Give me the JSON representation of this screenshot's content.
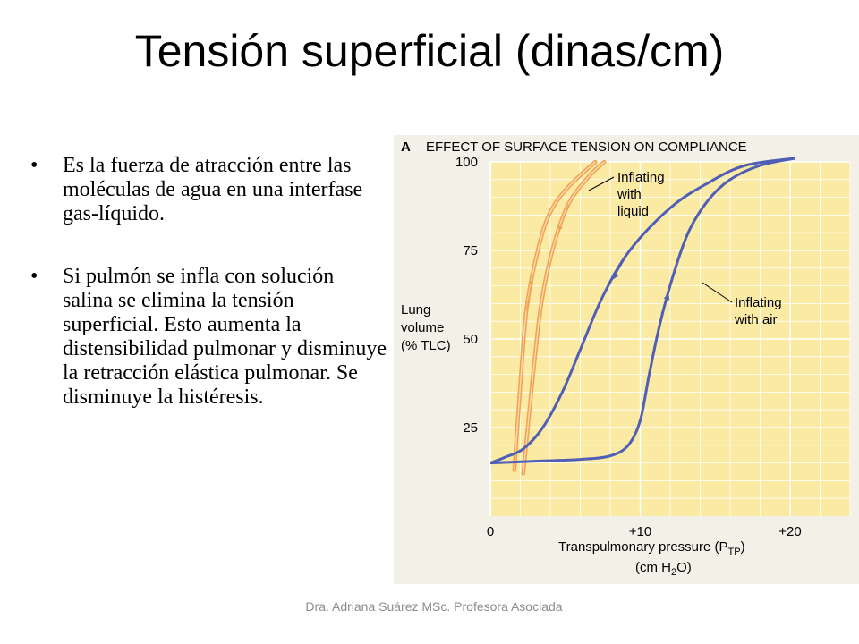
{
  "slide": {
    "title": "Tensión superficial (dinas/cm)",
    "bullets": [
      "Es la fuerza de atracción entre las moléculas de agua en una interfase gas-líquido.",
      "Si pulmón se infla con solución salina se elimina la tensión superficial.  Esto aumenta la distensibilidad pulmonar y disminuye la retracción elástica pulmonar. Se disminuye la histéresis."
    ],
    "footer": "Dra. Adriana Suárez MSc. Profesora Asociada"
  },
  "colors": {
    "plot_background": "#fbeaa3",
    "grid": "#ffffff",
    "page_background": "#f3f0e8",
    "air_curve": "#4f5fb6",
    "liquid_curve": "#f0a255",
    "liquid_curve_inner": "#fbd9a6",
    "text": "#000000"
  },
  "chart_data": {
    "type": "line",
    "panel_letter": "A",
    "title": "EFFECT OF SURFACE TENSION ON COMPLIANCE",
    "ylabel": [
      "Lung",
      "volume",
      "(% TLC)"
    ],
    "xlabel": "Transpulmonary pressure (P",
    "xlabel_subscript": "TP",
    "xlabel_units": [
      "(cm H",
      "2",
      "O)"
    ],
    "xlim": [
      0,
      24
    ],
    "ylim": [
      0,
      100
    ],
    "x_ticks": [
      {
        "value": 0,
        "label": "0"
      },
      {
        "value": 10,
        "label": "+10"
      },
      {
        "value": 20,
        "label": "+20"
      }
    ],
    "y_ticks": [
      {
        "value": 25,
        "label": "25"
      },
      {
        "value": 50,
        "label": "50"
      },
      {
        "value": 75,
        "label": "75"
      },
      {
        "value": 100,
        "label": "100"
      }
    ],
    "grid": true,
    "series": [
      {
        "name": "Inflating with liquid",
        "label_lines": [
          "Inflating",
          "with",
          "liquid"
        ],
        "color": "#f0a255",
        "inflation": [
          [
            1.6,
            13
          ],
          [
            2.0,
            37
          ],
          [
            2.4,
            58
          ],
          [
            3.0,
            72
          ],
          [
            3.8,
            84
          ],
          [
            5.0,
            92
          ],
          [
            7.0,
            100
          ]
        ],
        "deflation": [
          [
            2.2,
            12
          ],
          [
            2.8,
            38
          ],
          [
            3.4,
            60
          ],
          [
            4.2,
            76
          ],
          [
            5.2,
            88
          ],
          [
            6.6,
            96
          ],
          [
            7.6,
            100
          ]
        ]
      },
      {
        "name": "Inflating with air",
        "label_lines": [
          "Inflating",
          "with air"
        ],
        "color": "#4f5fb6",
        "inflation": [
          [
            0,
            15
          ],
          [
            3,
            15.5
          ],
          [
            6,
            16
          ],
          [
            8,
            17
          ],
          [
            9.2,
            20
          ],
          [
            10,
            27
          ],
          [
            10.6,
            40
          ],
          [
            11.3,
            54
          ],
          [
            12.2,
            68
          ],
          [
            13.2,
            80
          ],
          [
            14.5,
            89
          ],
          [
            16,
            95
          ],
          [
            18,
            99
          ],
          [
            20.3,
            101
          ]
        ],
        "deflation": [
          [
            20.3,
            101
          ],
          [
            17,
            99
          ],
          [
            14.5,
            94
          ],
          [
            12,
            87
          ],
          [
            9.3,
            75
          ],
          [
            7.5,
            62
          ],
          [
            6,
            47
          ],
          [
            4.8,
            35
          ],
          [
            3.5,
            25
          ],
          [
            2.2,
            19
          ],
          [
            0.9,
            16.5
          ],
          [
            0,
            15
          ]
        ]
      }
    ]
  }
}
